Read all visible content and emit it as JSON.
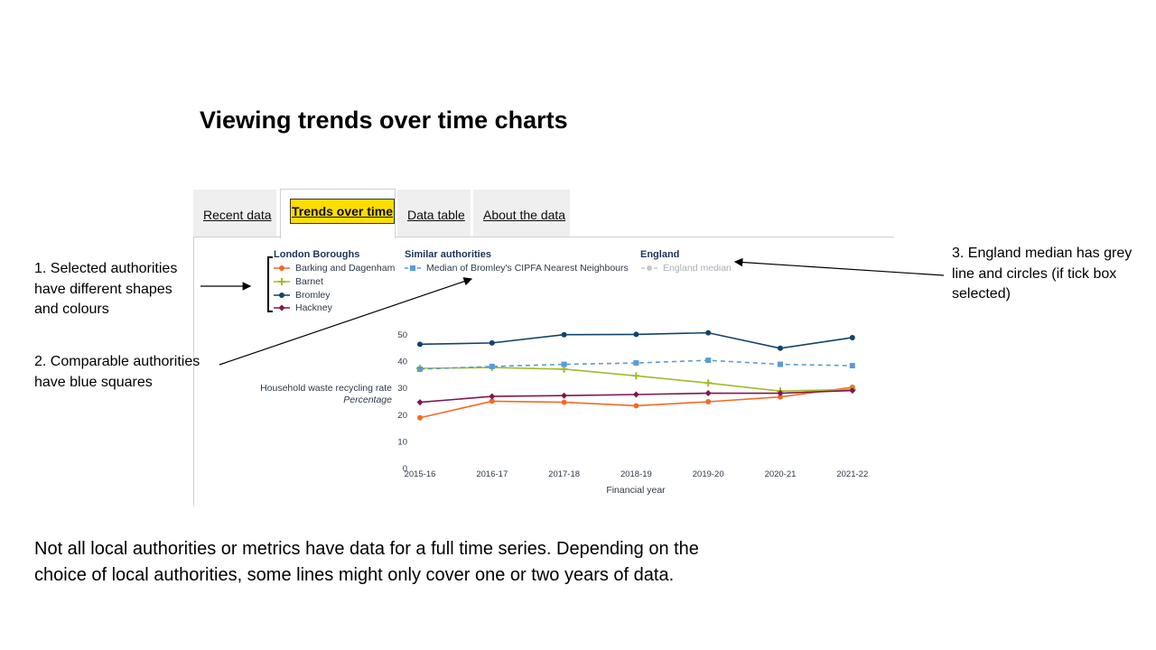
{
  "title": "Viewing trends over time charts",
  "tabs": [
    {
      "label": "Recent data",
      "active": false
    },
    {
      "label": "Trends over time",
      "active": true
    },
    {
      "label": "Data table",
      "active": false
    },
    {
      "label": "About the data",
      "active": false
    }
  ],
  "legend": {
    "groups": [
      {
        "heading": "London Boroughs",
        "items": [
          "Barking and Dagenham",
          "Barnet",
          "Bromley",
          "Hackney"
        ]
      },
      {
        "heading": "Similar authorities",
        "items": [
          "Median of Bromley's CIPFA Nearest Neighbours"
        ]
      },
      {
        "heading": "England",
        "items": [
          "England median"
        ]
      }
    ]
  },
  "y_axis_label": "Household waste recycling rate",
  "y_axis_unit": "Percentage",
  "annotations": {
    "a1": "1. Selected authorities have different shapes and colours",
    "a2": "2. Comparable authorities have blue squares",
    "a3": "3. England median has grey line and circles (if tick box selected)"
  },
  "footer_text": "Not all local authorities or metrics have data for a full time series. Depending on the choice of local authorities, some lines might only cover one or two years of data.",
  "chart_data": {
    "type": "line",
    "x": [
      "2015-16",
      "2016-17",
      "2017-18",
      "2018-19",
      "2019-20",
      "2020-21",
      "2021-22"
    ],
    "xlabel": "Financial year",
    "ylabel": "Household waste recycling rate",
    "ylim": [
      0,
      50
    ],
    "yticks": [
      0,
      10,
      20,
      30,
      40,
      50
    ],
    "grid": false,
    "series": [
      {
        "name": "Barking and Dagenham",
        "color": "#f46a25",
        "marker": "circle",
        "dash": false,
        "values": [
          19,
          25.2,
          24.8,
          23.5,
          25,
          26.8,
          30.4
        ]
      },
      {
        "name": "Barnet",
        "color": "#a0bc27",
        "marker": "plus",
        "dash": false,
        "values": [
          37.5,
          37.8,
          37.2,
          34.7,
          32,
          29,
          29.6
        ]
      },
      {
        "name": "Bromley",
        "color": "#12436d",
        "marker": "circle",
        "dash": false,
        "values": [
          46.5,
          47,
          50.1,
          50.2,
          50.8,
          45,
          49
        ]
      },
      {
        "name": "Hackney",
        "color": "#801650",
        "marker": "diamond",
        "dash": false,
        "values": [
          24.8,
          27,
          27.3,
          27.7,
          28.2,
          28.2,
          29.2
        ]
      },
      {
        "name": "Median of Bromley's CIPFA Nearest Neighbours",
        "color": "#5b9bd5",
        "marker": "square",
        "dash": true,
        "values": [
          37.2,
          38.2,
          39,
          39.5,
          40.5,
          39,
          38.5
        ]
      }
    ],
    "england_median": {
      "name": "England median",
      "color": "#c4c9cc",
      "marker": "circle",
      "dash": true,
      "shown": false
    }
  }
}
